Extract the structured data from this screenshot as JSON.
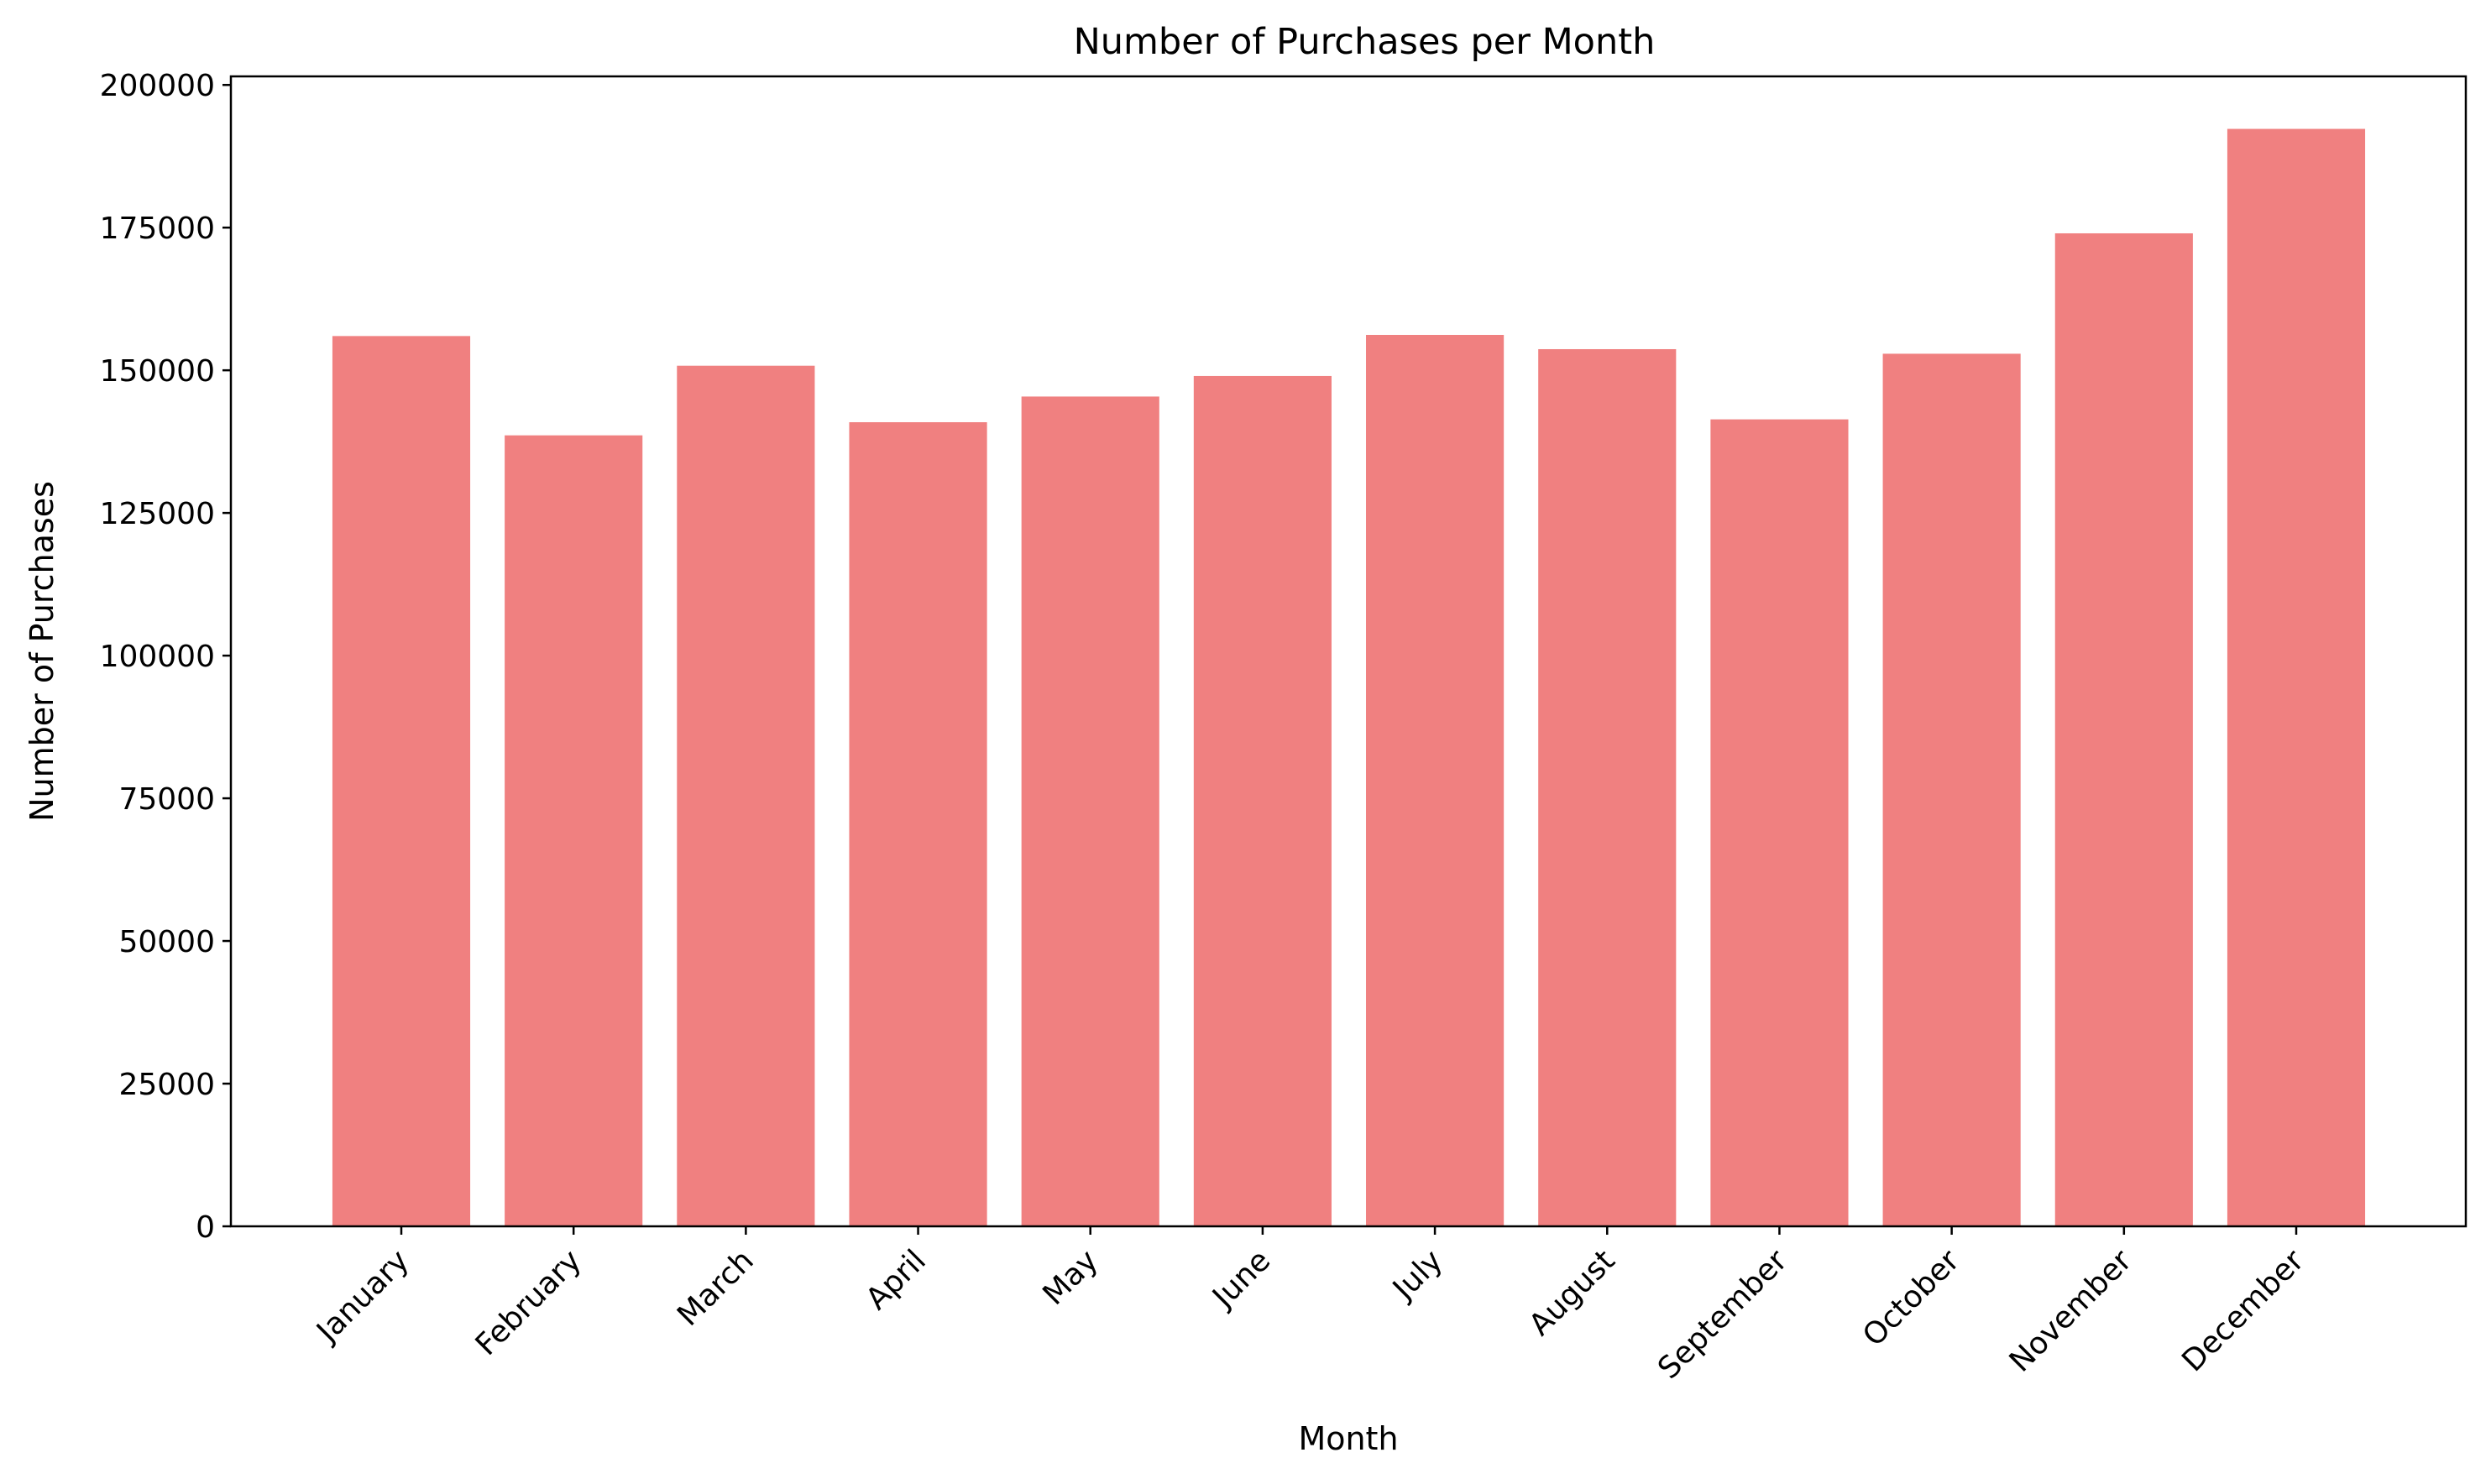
{
  "chart_data": {
    "type": "bar",
    "title": "Number of Purchases per Month",
    "xlabel": "Month",
    "ylabel": "Number of Purchases",
    "categories": [
      "January",
      "February",
      "March",
      "April",
      "May",
      "June",
      "July",
      "August",
      "September",
      "October",
      "November",
      "December"
    ],
    "values": [
      156000,
      138600,
      150800,
      140900,
      145400,
      149000,
      156200,
      153700,
      141400,
      152900,
      174000,
      192300
    ],
    "ylim": [
      0,
      201500
    ],
    "yticks": [
      0,
      25000,
      50000,
      75000,
      100000,
      125000,
      150000,
      175000,
      200000
    ],
    "ytick_labels": [
      "0",
      "25000",
      "50000",
      "75000",
      "100000",
      "125000",
      "150000",
      "175000",
      "200000"
    ],
    "bar_color": "#f08080",
    "grid": false,
    "legend": null
  }
}
